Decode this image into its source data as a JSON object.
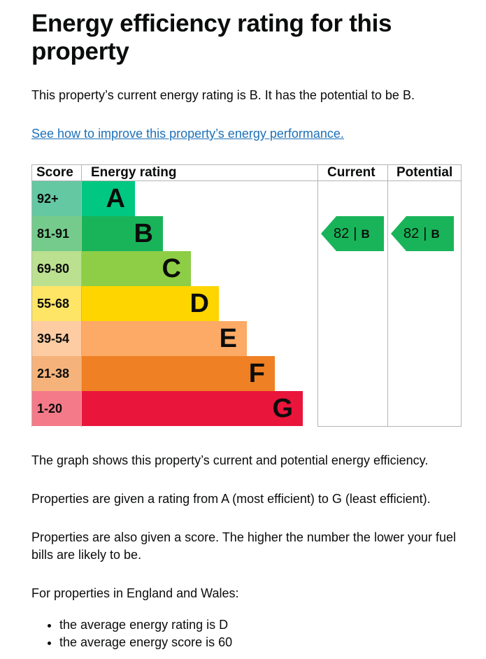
{
  "heading": "Energy efficiency rating for this property",
  "intro": "This property’s current energy rating is B. It has the potential to be B.",
  "improve_link": "See how to improve this property’s energy performance.",
  "chart_data": {
    "type": "bar",
    "headers": {
      "score": "Score",
      "rating": "Energy rating",
      "current": "Current",
      "potential": "Potential"
    },
    "bands": [
      {
        "score": "92+",
        "letter": "A",
        "bar_color": "#00c781",
        "score_color": "#64c8a2"
      },
      {
        "score": "81-91",
        "letter": "B",
        "bar_color": "#19b459",
        "score_color": "#75cb8b"
      },
      {
        "score": "69-80",
        "letter": "C",
        "bar_color": "#8dce46",
        "score_color": "#bbe090"
      },
      {
        "score": "55-68",
        "letter": "D",
        "bar_color": "#ffd500",
        "score_color": "#ffe566"
      },
      {
        "score": "39-54",
        "letter": "E",
        "bar_color": "#fcaa65",
        "score_color": "#fdcca3"
      },
      {
        "score": "21-38",
        "letter": "F",
        "bar_color": "#ef8023",
        "score_color": "#f5b37b"
      },
      {
        "score": "1-20",
        "letter": "G",
        "bar_color": "#e9153b",
        "score_color": "#f57a89"
      }
    ],
    "current": {
      "score": "82",
      "separator": "|",
      "letter": "B",
      "band_index": 1
    },
    "potential": {
      "score": "82",
      "separator": "|",
      "letter": "B",
      "band_index": 1
    }
  },
  "paragraphs": [
    "The graph shows this property’s current and potential energy efficiency.",
    "Properties are given a rating from A (most efficient) to G (least efficient).",
    "Properties are also given a score. The higher the number the lower your fuel bills are likely to be.",
    "For properties in England and Wales:"
  ],
  "bullets": [
    "the average energy rating is D",
    "the average energy score is 60"
  ]
}
